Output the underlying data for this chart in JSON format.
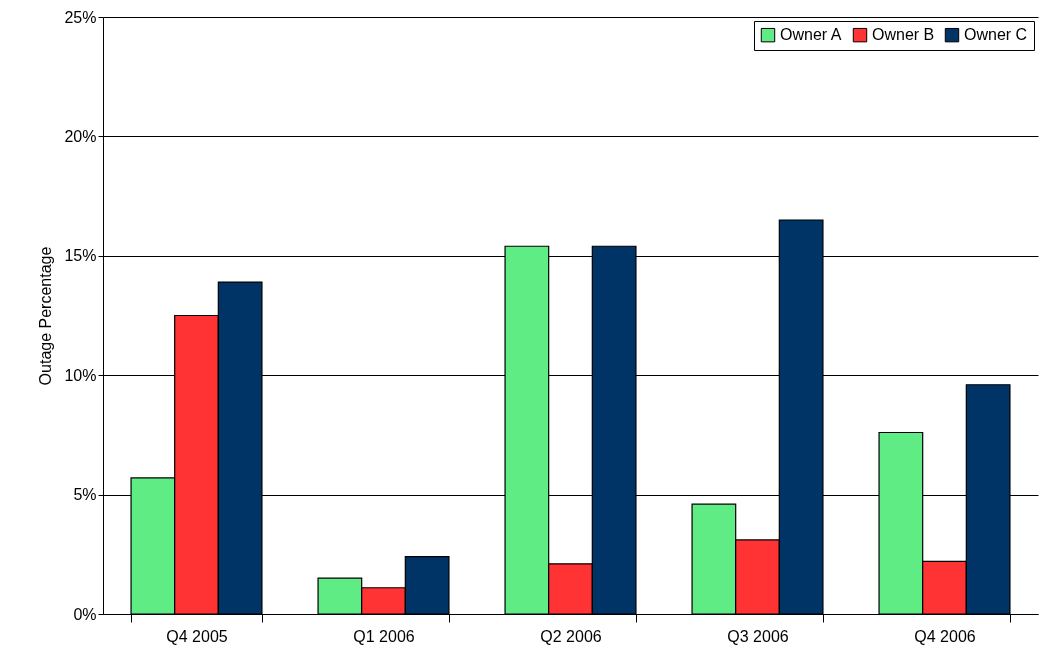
{
  "chart_data": {
    "type": "bar",
    "ylabel": "Outage Percentage",
    "categories": [
      "Q4 2005",
      "Q1 2006",
      "Q2 2006",
      "Q3 2006",
      "Q4 2006"
    ],
    "series": [
      {
        "name": "Owner A",
        "color": "#60ec84",
        "values": [
          5.7,
          1.5,
          15.4,
          4.6,
          7.6
        ]
      },
      {
        "name": "Owner B",
        "color": "#ff3333",
        "values": [
          12.5,
          1.1,
          2.1,
          3.1,
          2.2
        ]
      },
      {
        "name": "Owner C",
        "color": "#003366",
        "values": [
          13.9,
          2.4,
          15.4,
          16.5,
          9.6
        ]
      }
    ],
    "ylim": [
      0,
      25
    ],
    "yticks": [
      {
        "value": 0,
        "label": "0%"
      },
      {
        "value": 5,
        "label": "5%"
      },
      {
        "value": 10,
        "label": "10%"
      },
      {
        "value": 15,
        "label": "15%"
      },
      {
        "value": 20,
        "label": "20%"
      },
      {
        "value": 25,
        "label": "25%"
      }
    ],
    "grid": "y",
    "legend": "top right"
  }
}
